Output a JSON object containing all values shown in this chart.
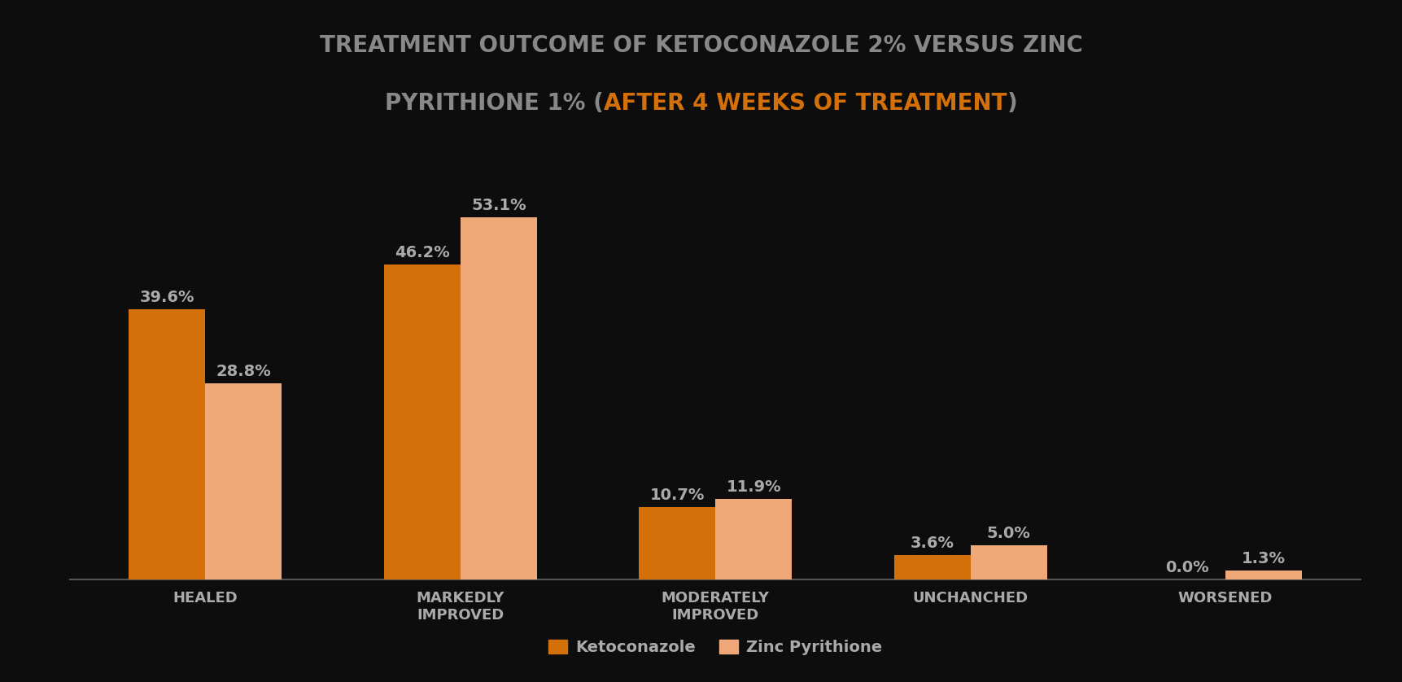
{
  "title_line1": "TREATMENT OUTCOME OF KETOCONAZOLE 2% VERSUS ZINC",
  "title_line2_plain": "PYRITHIONE 1% (",
  "title_line2_highlight": "AFTER 4 WEEKS OF TREATMENT",
  "title_line2_end": ")",
  "categories": [
    "HEALED",
    "MARKEDLY\nIMPROVED",
    "MODERATELY\nIMPROVED",
    "UNCHANCHED",
    "WORSENED"
  ],
  "ketoconazole_values": [
    39.6,
    46.2,
    10.7,
    3.6,
    0.0
  ],
  "zinc_values": [
    28.8,
    53.1,
    11.9,
    5.0,
    1.3
  ],
  "ketoconazole_color": "#D4700A",
  "zinc_color": "#F0A878",
  "background_color": "#0d0d0d",
  "text_color": "#aaaaaa",
  "title_color": "#888888",
  "highlight_color": "#D4700A",
  "legend_label_keto": "Ketoconazole",
  "legend_label_zinc": "Zinc Pyrithione",
  "ylim": [
    0,
    60
  ],
  "bar_width": 0.3,
  "figsize": [
    17.24,
    8.38
  ],
  "dpi": 100,
  "title_fontsize": 20,
  "label_fontsize": 14,
  "tick_fontsize": 13,
  "legend_fontsize": 14
}
